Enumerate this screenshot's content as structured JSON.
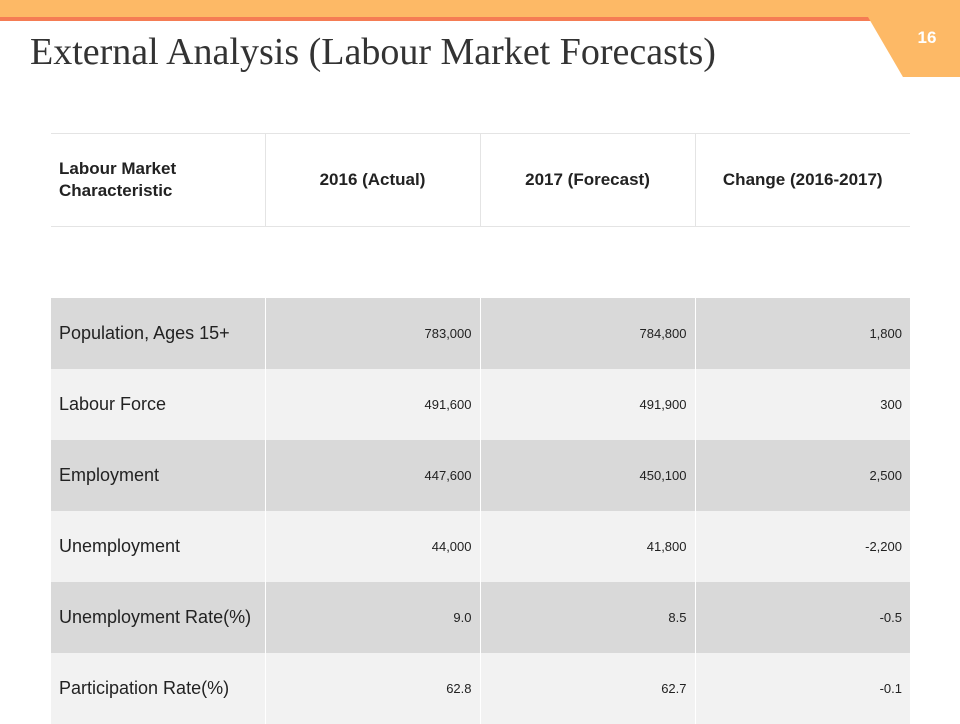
{
  "slide": {
    "title": "External Analysis (Labour Market Forecasts)",
    "page_number": "16"
  },
  "colors": {
    "top_bar": "#fdb966",
    "accent_line": "#f57c54",
    "row_dark": "#d9d9d9",
    "row_light": "#f2f2f2"
  },
  "table": {
    "headers": [
      "Labour Market Characteristic",
      "2016 (Actual)",
      "2017 (Forecast)",
      "Change (2016-2017)"
    ],
    "rows": [
      {
        "label": "Population, Ages 15+",
        "actual_2016": "783,000",
        "forecast_2017": "784,800",
        "change": "1,800"
      },
      {
        "label": "Labour Force",
        "actual_2016": "491,600",
        "forecast_2017": "491,900",
        "change": "300"
      },
      {
        "label": "Employment",
        "actual_2016": "447,600",
        "forecast_2017": "450,100",
        "change": "2,500"
      },
      {
        "label": "Unemployment",
        "actual_2016": "44,000",
        "forecast_2017": "41,800",
        "change": "-2,200"
      },
      {
        "label": "Unemployment Rate(%)",
        "actual_2016": "9.0",
        "forecast_2017": "8.5",
        "change": "-0.5"
      },
      {
        "label": "Participation Rate(%)",
        "actual_2016": "62.8",
        "forecast_2017": "62.7",
        "change": "-0.1"
      }
    ]
  }
}
